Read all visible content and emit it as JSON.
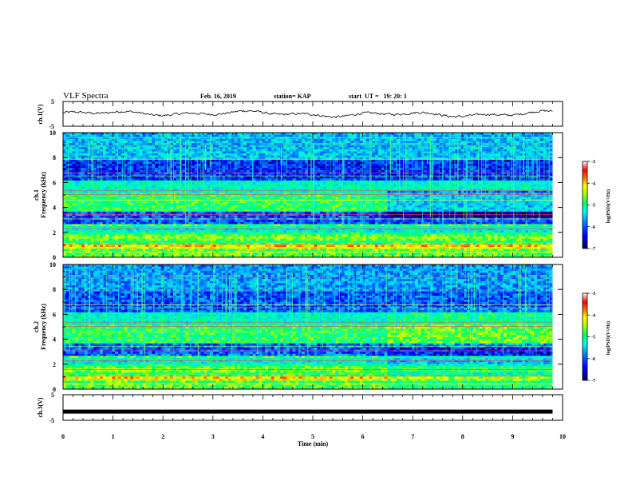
{
  "header": {
    "title": "VLF Spectra",
    "date": "Feb. 16, 2019",
    "station": "station= KAP",
    "start": "start  UT =   19: 20: 1"
  },
  "chart_data": [
    {
      "type": "line",
      "panel": "ch.1(V)",
      "ylabel": "ch.1(V)",
      "yticks": [
        "5",
        "-5"
      ],
      "ylim": [
        -5,
        5
      ],
      "xlim": [
        0,
        10
      ],
      "description_series": "waveform amplitude around 0 V, fluctuating roughly -1 to +1.5 V from 0 to ~9.8 min"
    },
    {
      "type": "heatmap",
      "panel": "ch.1 spectrogram",
      "ylabel": "ch.1\nFrequency (kHz)",
      "ylabel_lines": [
        "ch.1",
        "Frequency (kHz)"
      ],
      "yticks": [
        "10",
        "8",
        "6",
        "4",
        "2",
        "0"
      ],
      "ylim": [
        0,
        10
      ],
      "xlim": [
        0,
        10
      ],
      "data_end_min": 9.8,
      "change_time_min": 6.5,
      "colorbar": {
        "label": "log(PSD)(V²/Hz)",
        "ticks": [
          "-3",
          "-4",
          "-5",
          "-6",
          "-7"
        ],
        "range": [
          -7,
          -3
        ]
      }
    },
    {
      "type": "heatmap",
      "panel": "ch.2 spectrogram",
      "ylabel_lines": [
        "ch.2",
        "Frequency (kHz)"
      ],
      "yticks": [
        "10",
        "8",
        "6",
        "4",
        "2",
        "0"
      ],
      "ylim": [
        0,
        10
      ],
      "xlim": [
        0,
        10
      ],
      "data_end_min": 9.8,
      "change_time_min": 6.5,
      "colorbar": {
        "label": "log(PSD)(V²/Hz)",
        "ticks": [
          "-3",
          "-4",
          "-5",
          "-6",
          "-7"
        ],
        "range": [
          -7,
          -3
        ]
      }
    },
    {
      "type": "line",
      "panel": "ch.3(V)",
      "ylabel": "ch.3(V)",
      "yticks": [
        "5",
        "-5"
      ],
      "ylim": [
        -5,
        5
      ],
      "xlim": [
        0,
        10
      ],
      "series": [
        {
          "x": [
            0,
            9.8
          ],
          "y": [
            -1.6,
            -1.6
          ]
        }
      ]
    }
  ],
  "xaxis": {
    "label": "Time (min)",
    "ticks": [
      "0",
      "1",
      "2",
      "3",
      "4",
      "5",
      "6",
      "7",
      "8",
      "9",
      "10"
    ]
  },
  "colors": {
    "trace": "#000000",
    "cmap": [
      "#000080",
      "#0000ff",
      "#0080ff",
      "#00ffff",
      "#00ff80",
      "#80ff00",
      "#ffff00",
      "#ff8000",
      "#ff0000",
      "#ff8080",
      "#ffffff"
    ]
  }
}
